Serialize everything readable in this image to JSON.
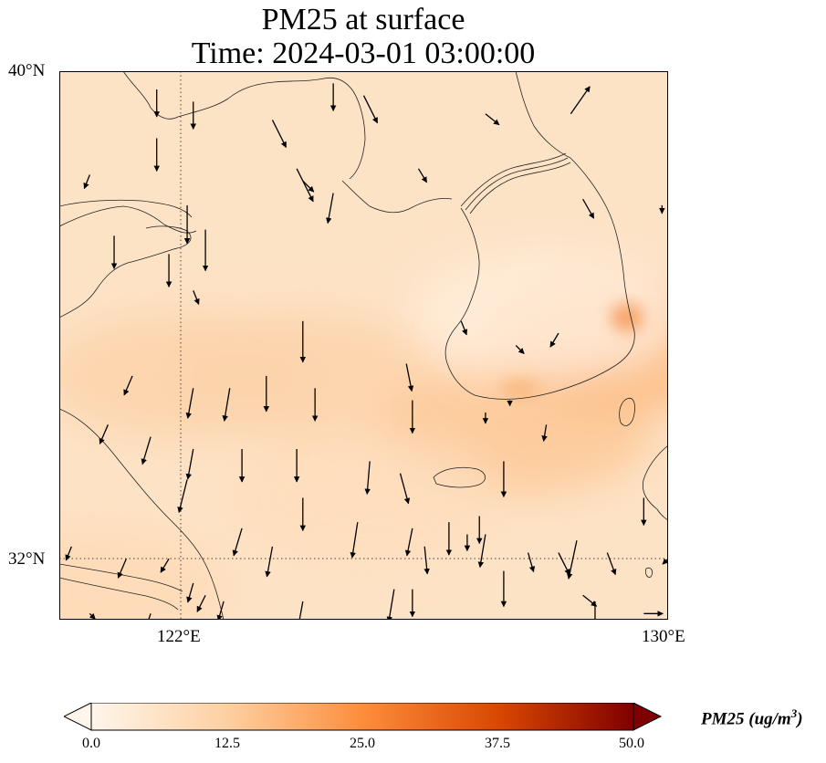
{
  "title_line1": "PM25 at surface",
  "title_line2": "Time: 2024-03-01 03:00:00",
  "lat_labels": [
    "40°N",
    "32°N"
  ],
  "lon_labels": [
    "122°E",
    "130°E"
  ],
  "colorbar": {
    "label": "PM25 (ug/m",
    "label_sup": "3",
    "label_close": ")",
    "ticks": [
      "0.0",
      "12.5",
      "25.0",
      "37.5",
      "50.0"
    ],
    "colors": [
      "#fff5eb",
      "#fdd0a2",
      "#fd8d3c",
      "#d94801",
      "#7f0000"
    ]
  },
  "chart_data": {
    "type": "heatmap",
    "variable": "PM25",
    "units": "ug/m3",
    "time": "2024-03-01 03:00:00",
    "lon_range": [
      120,
      130
    ],
    "lat_range": [
      31,
      40
    ],
    "gridlines": {
      "lon": [
        122,
        130
      ],
      "lat": [
        32,
        40
      ]
    },
    "value_range": [
      0,
      50
    ],
    "extend": "both",
    "regions": [
      {
        "lon": 122,
        "lat": 35,
        "value": 11
      },
      {
        "lon": 124,
        "lat": 35,
        "value": 11
      },
      {
        "lon": 127.5,
        "lat": 34.1,
        "value": 14
      },
      {
        "lon": 129.3,
        "lat": 35.5,
        "value": 17
      },
      {
        "lon": 120.5,
        "lat": 31.5,
        "value": 9
      },
      {
        "lon": 125,
        "lat": 33,
        "value": 8
      },
      {
        "lon": 128,
        "lat": 36,
        "value": 3
      }
    ],
    "wind_vectors": [
      [
        121.6,
        39.7,
        0,
        -1
      ],
      [
        122.2,
        39.5,
        0,
        -1
      ],
      [
        123.5,
        39.2,
        0.5,
        -1
      ],
      [
        124.5,
        39.8,
        0,
        -1
      ],
      [
        125.0,
        39.6,
        0.5,
        -1
      ],
      [
        127.0,
        39.3,
        0.5,
        -0.4
      ],
      [
        128.4,
        39.3,
        0.7,
        1
      ],
      [
        121.6,
        38.9,
        0,
        -1.2
      ],
      [
        120.5,
        38.3,
        -0.2,
        -0.5
      ],
      [
        122.1,
        37.8,
        0,
        -1.4
      ],
      [
        122.4,
        37.4,
        0,
        -1.5
      ],
      [
        123.9,
        38.4,
        0.6,
        -1.2
      ],
      [
        124.0,
        38.2,
        0.4,
        -0.4
      ],
      [
        124.5,
        38.0,
        -0.2,
        -1.1
      ],
      [
        125.9,
        38.4,
        0.3,
        -0.5
      ],
      [
        128.6,
        37.9,
        0.4,
        -0.7
      ],
      [
        129.9,
        37.8,
        0,
        -0.3
      ],
      [
        121.8,
        37.0,
        0,
        -1.2
      ],
      [
        120.9,
        37.3,
        0,
        -1.2
      ],
      [
        122.2,
        36.4,
        0.2,
        -0.5
      ],
      [
        124.0,
        35.9,
        0,
        -1.5
      ],
      [
        126.6,
        35.9,
        0.2,
        -0.5
      ],
      [
        125.7,
        35.2,
        0.2,
        -1
      ],
      [
        127.5,
        35.5,
        0.3,
        -0.3
      ],
      [
        128.2,
        35.7,
        -0.3,
        -0.5
      ],
      [
        121.2,
        35.0,
        -0.3,
        -0.7
      ],
      [
        122.2,
        34.8,
        -0.2,
        -1.1
      ],
      [
        122.8,
        34.8,
        -0.2,
        -1.2
      ],
      [
        123.4,
        35.0,
        0,
        -1.3
      ],
      [
        124.2,
        34.8,
        0,
        -1.2
      ],
      [
        125.8,
        34.6,
        0,
        -1.2
      ],
      [
        127.0,
        34.4,
        0,
        -0.4
      ],
      [
        127.4,
        34.6,
        0,
        -0.2
      ],
      [
        120.8,
        34.2,
        -0.3,
        -0.7
      ],
      [
        121.5,
        34.0,
        -0.3,
        -1.0
      ],
      [
        122.2,
        33.8,
        -0.2,
        -1.1
      ],
      [
        122.1,
        33.3,
        -0.3,
        -1.2
      ],
      [
        123.0,
        33.8,
        0,
        -1.2
      ],
      [
        123.9,
        33.8,
        0,
        -1.2
      ],
      [
        124.0,
        33.0,
        0,
        -1.2
      ],
      [
        125.1,
        33.6,
        -0.1,
        -1.2
      ],
      [
        125.6,
        33.4,
        0.3,
        -1.1
      ],
      [
        125.8,
        32.5,
        -0.2,
        -1.0
      ],
      [
        126.7,
        32.4,
        0,
        -0.6
      ],
      [
        126.0,
        32.2,
        0.1,
        -1.0
      ],
      [
        127.0,
        32.4,
        -0.2,
        -1.2
      ],
      [
        127.7,
        32.1,
        0.2,
        -0.7
      ],
      [
        128.2,
        32.1,
        0.4,
        -0.8
      ],
      [
        129.0,
        32.1,
        0.3,
        -0.8
      ],
      [
        128.5,
        32.3,
        -0.3,
        -1.4
      ],
      [
        129.6,
        33.0,
        0,
        -1.0
      ],
      [
        127.3,
        33.6,
        0,
        -1.3
      ],
      [
        128.0,
        34.2,
        -0.1,
        -0.6
      ],
      [
        121.8,
        32.0,
        -0.3,
        -0.5
      ],
      [
        122.2,
        31.6,
        -0.2,
        -0.7
      ],
      [
        122.7,
        31.3,
        -0.2,
        -0.7
      ],
      [
        123.0,
        32.5,
        -0.3,
        -1.0
      ],
      [
        123.5,
        32.2,
        -0.2,
        -1.1
      ],
      [
        124.0,
        31.3,
        -0.2,
        -1.1
      ],
      [
        124.9,
        32.6,
        -0.2,
        -1.3
      ],
      [
        125.5,
        31.5,
        -0.2,
        -1.2
      ],
      [
        125.8,
        31.5,
        0,
        -1.0
      ],
      [
        126.3,
        31.0,
        0,
        -1.0
      ],
      [
        126.4,
        32.6,
        0,
        -1.2
      ],
      [
        126.9,
        32.7,
        0,
        -1.0
      ],
      [
        127.3,
        31.8,
        0,
        -1.3
      ],
      [
        128.6,
        31.4,
        0.5,
        -0.4
      ],
      [
        128.8,
        31.3,
        0,
        -1.1
      ],
      [
        121.1,
        32.0,
        -0.3,
        -0.7
      ],
      [
        120.2,
        32.2,
        -0.2,
        -0.5
      ],
      [
        121.5,
        31.1,
        -0.2,
        -0.6
      ],
      [
        122.4,
        31.4,
        -0.3,
        -0.6
      ],
      [
        120.5,
        31.1,
        0.2,
        -0.2
      ],
      [
        129.6,
        31.1,
        0.7,
        0
      ],
      [
        130.0,
        32.0,
        -0.2,
        -0.2
      ]
    ]
  }
}
